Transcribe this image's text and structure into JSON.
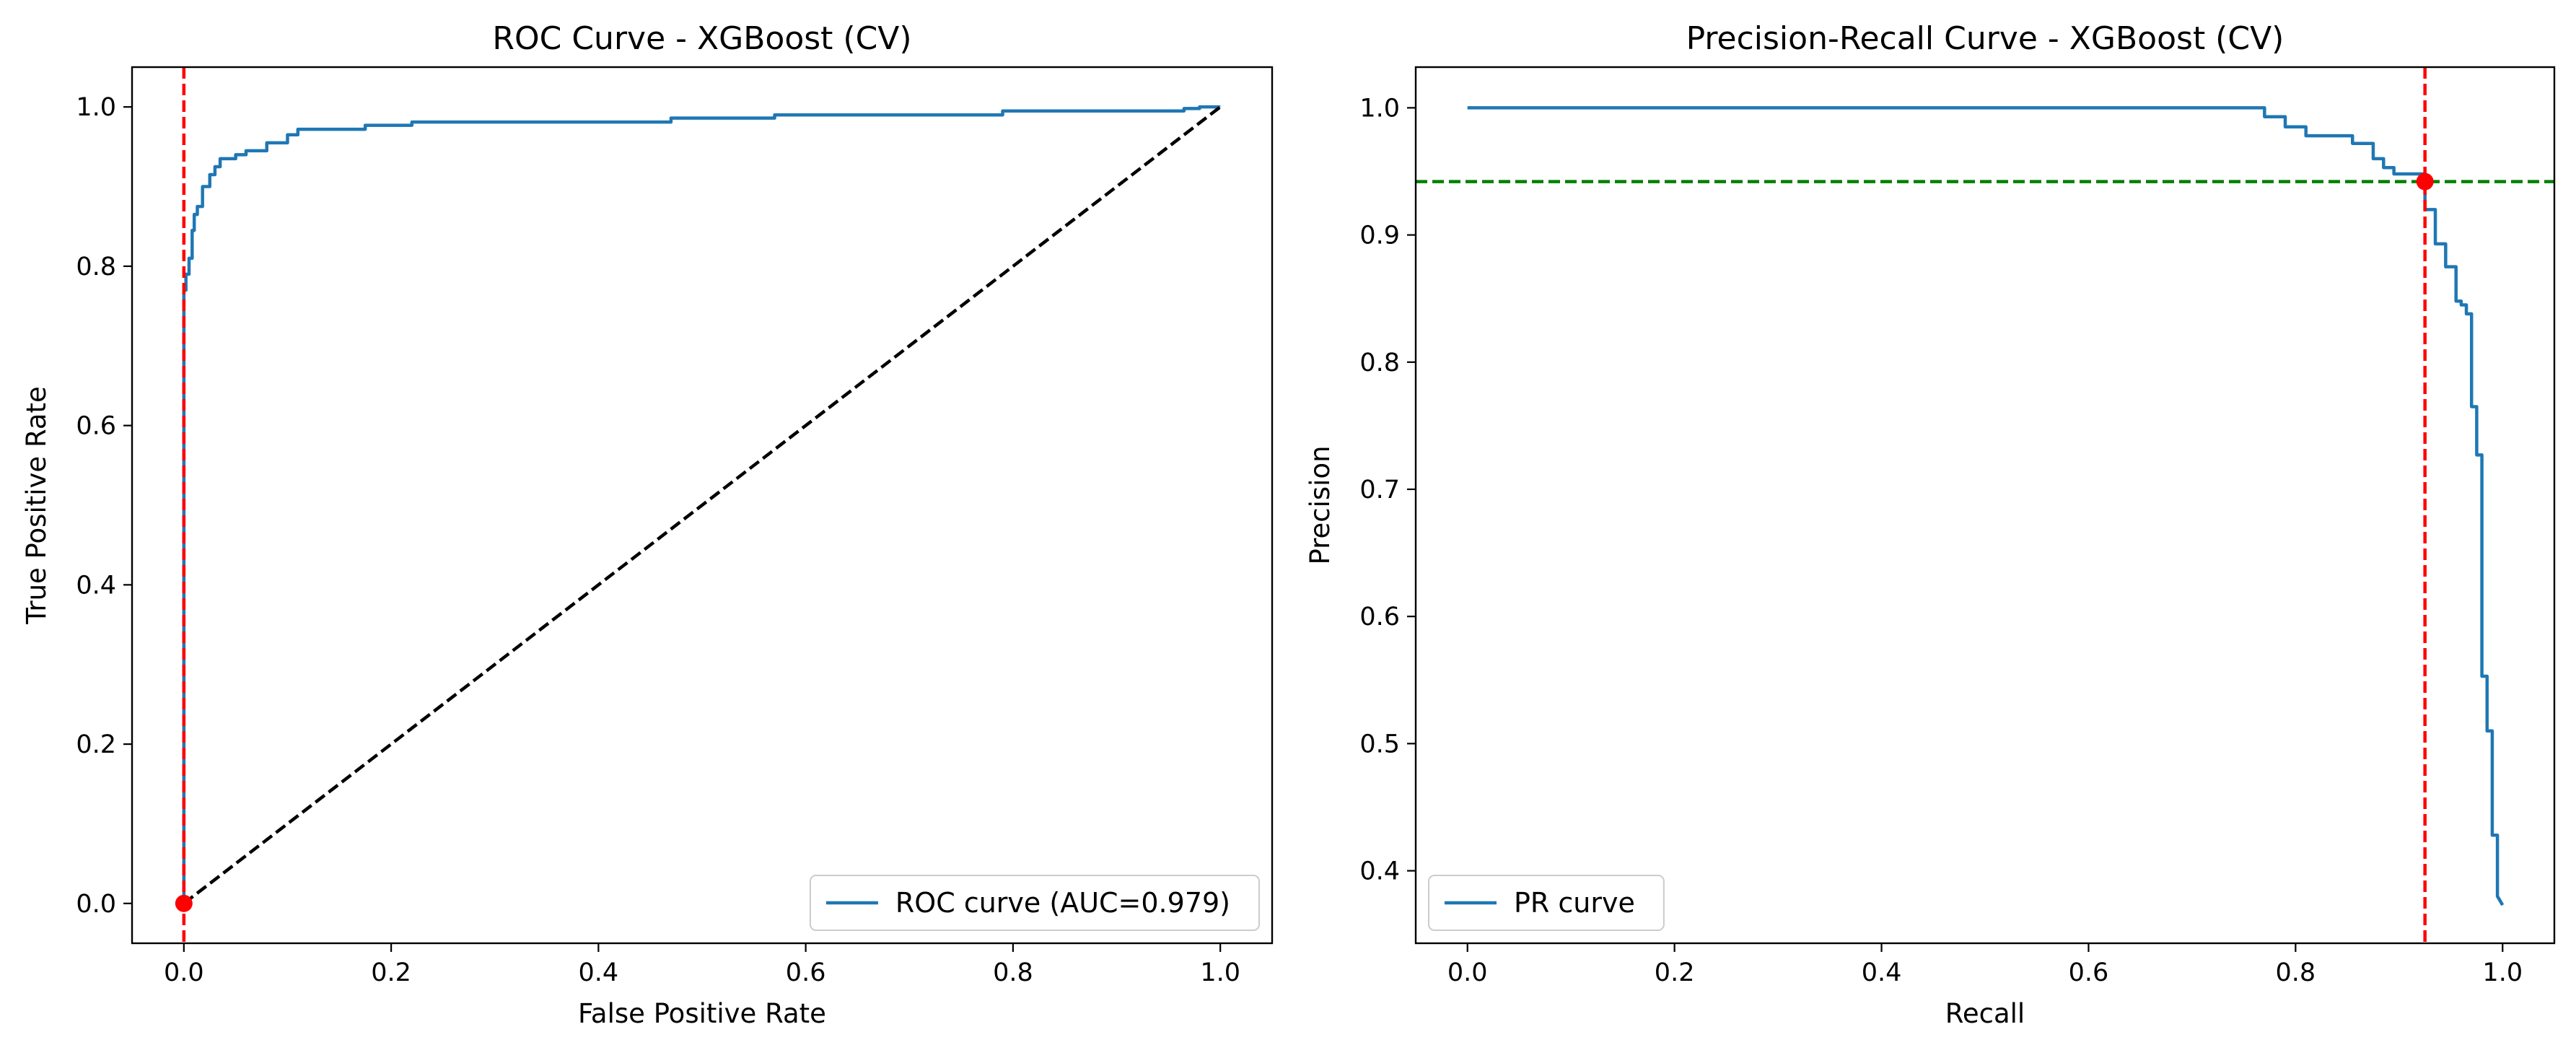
{
  "colors": {
    "curve": "#1f77b4",
    "threshold_marker": "#ff0000",
    "diagonal": "#000000",
    "precision_line": "#008000"
  },
  "chart_data": [
    {
      "type": "line",
      "title": "ROC Curve - XGBoost (CV)",
      "xlabel": "False Positive Rate",
      "ylabel": "True Positive Rate",
      "xlim": [
        -0.05,
        1.05
      ],
      "ylim": [
        -0.05,
        1.05
      ],
      "xticks": [
        "0.0",
        "0.2",
        "0.4",
        "0.6",
        "0.8",
        "1.0"
      ],
      "yticks": [
        "0.0",
        "0.2",
        "0.4",
        "0.6",
        "0.8",
        "1.0"
      ],
      "grid": false,
      "legend_position": "lower right",
      "series": [
        {
          "name": "ROC curve (AUC=0.979)",
          "x": [
            0.0,
            0.0,
            0.002,
            0.002,
            0.005,
            0.005,
            0.008,
            0.008,
            0.01,
            0.01,
            0.013,
            0.013,
            0.018,
            0.018,
            0.025,
            0.025,
            0.03,
            0.03,
            0.035,
            0.035,
            0.05,
            0.05,
            0.06,
            0.06,
            0.08,
            0.08,
            0.1,
            0.1,
            0.11,
            0.11,
            0.175,
            0.175,
            0.22,
            0.22,
            0.47,
            0.47,
            0.57,
            0.57,
            0.79,
            0.79,
            0.965,
            0.965,
            0.98,
            0.98,
            1.0
          ],
          "y": [
            0.0,
            0.77,
            0.77,
            0.79,
            0.79,
            0.81,
            0.81,
            0.845,
            0.845,
            0.865,
            0.865,
            0.875,
            0.875,
            0.9,
            0.9,
            0.915,
            0.915,
            0.925,
            0.925,
            0.935,
            0.935,
            0.94,
            0.94,
            0.945,
            0.945,
            0.955,
            0.955,
            0.965,
            0.965,
            0.972,
            0.972,
            0.977,
            0.977,
            0.981,
            0.981,
            0.986,
            0.986,
            0.99,
            0.99,
            0.995,
            0.995,
            0.998,
            0.998,
            1.0,
            1.0
          ]
        },
        {
          "name": "",
          "style": "dashed",
          "x": [
            0.0,
            1.0
          ],
          "y": [
            0.0,
            1.0
          ]
        }
      ],
      "vline_x": 0.0,
      "marker": {
        "x": 0.0,
        "y": 0.0
      }
    },
    {
      "type": "line",
      "title": "Precision-Recall Curve - XGBoost (CV)",
      "xlabel": "Recall",
      "ylabel": "Precision",
      "xlim": [
        -0.05,
        1.05
      ],
      "ylim": [
        0.343,
        1.032
      ],
      "xticks": [
        "0.0",
        "0.2",
        "0.4",
        "0.6",
        "0.8",
        "1.0"
      ],
      "yticks": [
        "0.4",
        "0.5",
        "0.6",
        "0.7",
        "0.8",
        "0.9",
        "1.0"
      ],
      "grid": false,
      "legend_position": "lower left",
      "series": [
        {
          "name": "PR curve",
          "x": [
            0.0,
            0.77,
            0.77,
            0.79,
            0.79,
            0.81,
            0.81,
            0.855,
            0.855,
            0.875,
            0.875,
            0.885,
            0.885,
            0.895,
            0.895,
            0.925,
            0.925,
            0.935,
            0.935,
            0.945,
            0.945,
            0.955,
            0.955,
            0.96,
            0.96,
            0.965,
            0.965,
            0.97,
            0.97,
            0.975,
            0.975,
            0.98,
            0.98,
            0.985,
            0.985,
            0.99,
            0.99,
            0.995,
            0.995,
            1.0
          ],
          "y": [
            1.0,
            1.0,
            0.993,
            0.993,
            0.985,
            0.985,
            0.978,
            0.978,
            0.972,
            0.972,
            0.96,
            0.96,
            0.953,
            0.953,
            0.948,
            0.948,
            0.92,
            0.92,
            0.893,
            0.893,
            0.875,
            0.875,
            0.848,
            0.848,
            0.845,
            0.845,
            0.838,
            0.838,
            0.765,
            0.765,
            0.727,
            0.727,
            0.553,
            0.553,
            0.51,
            0.51,
            0.428,
            0.428,
            0.38,
            0.373
          ]
        }
      ],
      "vline_x": 0.925,
      "hline_y": 0.942,
      "marker": {
        "x": 0.925,
        "y": 0.942
      }
    }
  ]
}
